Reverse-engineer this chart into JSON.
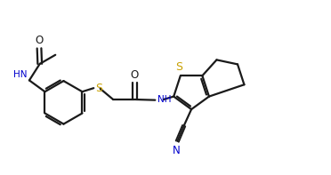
{
  "bg_color": "#ffffff",
  "line_color": "#1a1a1a",
  "text_color": "#1a1a1a",
  "label_color_S": "#c8a000",
  "label_color_N": "#0000cd",
  "line_width": 1.6,
  "figsize": [
    3.72,
    1.97
  ],
  "dpi": 100,
  "xlim": [
    0,
    11
  ],
  "ylim": [
    0,
    5.5
  ]
}
